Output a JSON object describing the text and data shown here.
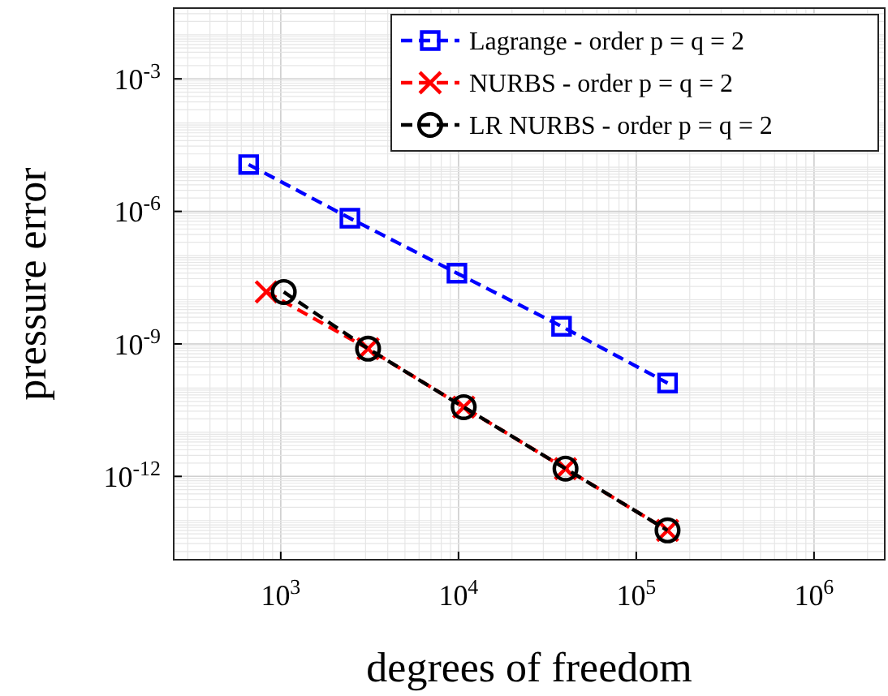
{
  "chart_data": {
    "type": "line",
    "xlabel": "degrees of freedom",
    "ylabel": "pressure error",
    "log": "xy",
    "grid": true,
    "legend": "top right",
    "xlim": [
      250,
      2500000
    ],
    "ylim": [
      1.3e-14,
      0.04
    ],
    "xticks": [
      {
        "value": 1000,
        "label": "10$^{3}$"
      },
      {
        "value": 10000,
        "label": "10$^{4}$"
      },
      {
        "value": 100000,
        "label": "10$^{5}$"
      },
      {
        "value": 1000000,
        "label": "10$^{6}$"
      }
    ],
    "yticks": [
      {
        "value": 1e-12,
        "label": "10$^{-12}$"
      },
      {
        "value": 1e-09,
        "label": "10$^{-9}$"
      },
      {
        "value": 1e-06,
        "label": "10$^{-6}$"
      },
      {
        "value": 0.001,
        "label": "10$^{-3}$"
      }
    ],
    "series": [
      {
        "name": "Lagrange - order p = q = 2",
        "color": "#0000ff",
        "marker": "square",
        "line_style": "dashed",
        "x": [
          660,
          2450,
          9800,
          38000,
          150000
        ],
        "values": [
          1.15e-05,
          7e-07,
          4e-08,
          2.5e-09,
          1.3e-10
        ]
      },
      {
        "name": "NURBS - order p = q = 2",
        "color": "#ff0000",
        "marker": "cross",
        "line_style": "dashed",
        "x": [
          830,
          3100,
          10700,
          40000,
          150000
        ],
        "values": [
          1.5e-08,
          7.8e-10,
          3.7e-11,
          1.5e-12,
          6e-14
        ]
      },
      {
        "name": "LR NURBS - order p = q = 2",
        "color": "#000000",
        "marker": "circle",
        "line_style": "dashed",
        "x": [
          1040,
          3100,
          10700,
          40000,
          150000
        ],
        "values": [
          1.5e-08,
          7.8e-10,
          3.7e-11,
          1.5e-12,
          6e-14
        ]
      }
    ]
  }
}
